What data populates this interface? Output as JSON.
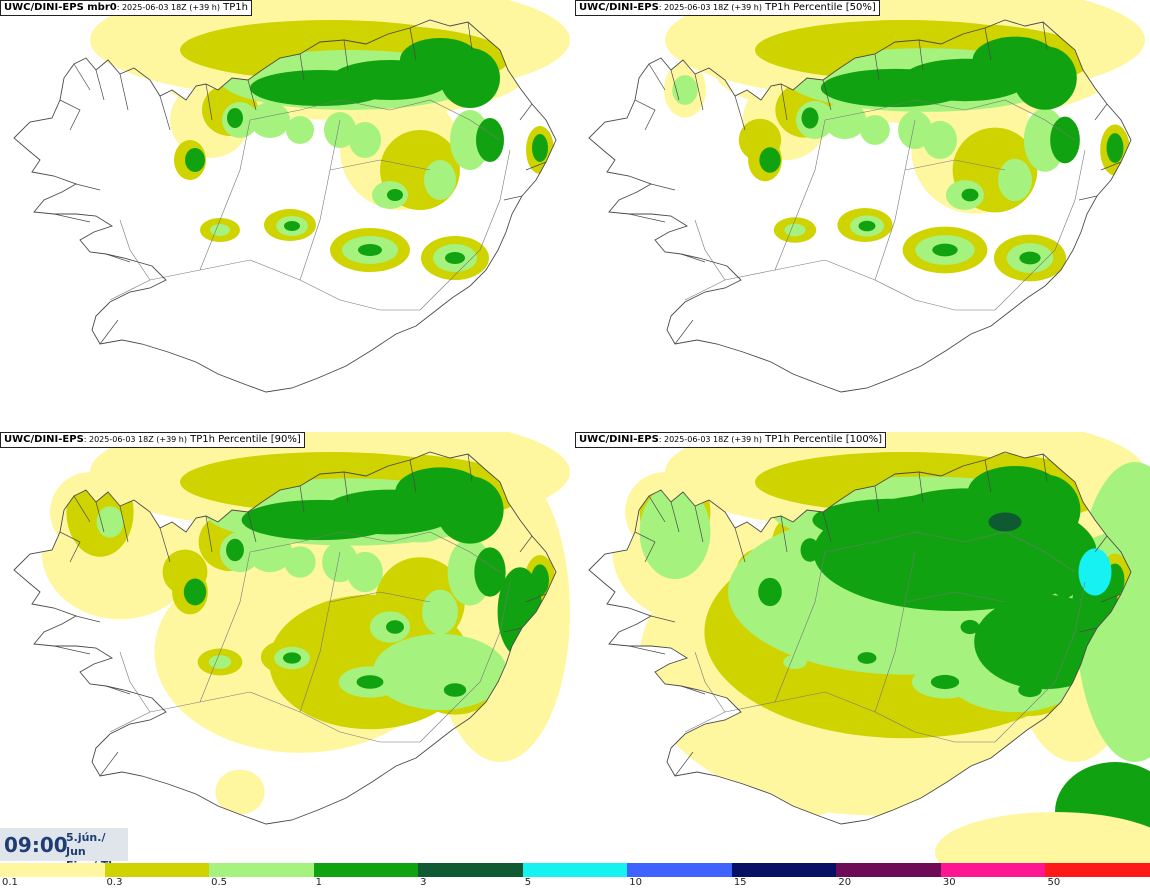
{
  "palette": {
    "lightyellow": "#fff7a0",
    "olive": "#cfd300",
    "lightgreen": "#a6f27f",
    "green": "#11a211",
    "darkgreen": "#0f5a32",
    "cyan": "#16f2f2",
    "blue": "#3f63ff",
    "navy": "#061065",
    "purple": "#6e0b56",
    "magenta": "#ff1493",
    "red": "#ff1a1a",
    "coast": "#4a4a4a",
    "road": "#777777"
  },
  "panels": [
    {
      "model": "UWC/DINI-EPS mbr0",
      "run": ": 2025-06-03 18Z (+39 h)",
      "field": " TP1h",
      "intensity": 1
    },
    {
      "model": "UWC/DINI-EPS",
      "run": ": 2025-06-03 18Z (+39 h)",
      "field": " TP1h Percentile [50%]",
      "intensity": 2
    },
    {
      "model": "UWC/DINI-EPS",
      "run": ": 2025-06-03 18Z (+39 h)",
      "field": " TP1h Percentile [90%]",
      "intensity": 3
    },
    {
      "model": "UWC/DINI-EPS",
      "run": ": 2025-06-03 18Z (+39 h)",
      "field": " TP1h Percentile [100%]",
      "intensity": 4
    }
  ],
  "valid_time": {
    "hour": "09:00",
    "date_line1": "5.jún./ Jun",
    "date_line2": "Fim./ Thu"
  },
  "legend": {
    "colors": [
      "#fff7a0",
      "#cfd300",
      "#a6f27f",
      "#11a211",
      "#0f5a32",
      "#16f2f2",
      "#3f63ff",
      "#061065",
      "#6e0b56",
      "#ff1493",
      "#ff1a1a"
    ],
    "labels": [
      "0.1",
      "0.3",
      "0.5",
      "1",
      "3",
      "5",
      "10",
      "15",
      "20",
      "30",
      "50"
    ]
  }
}
